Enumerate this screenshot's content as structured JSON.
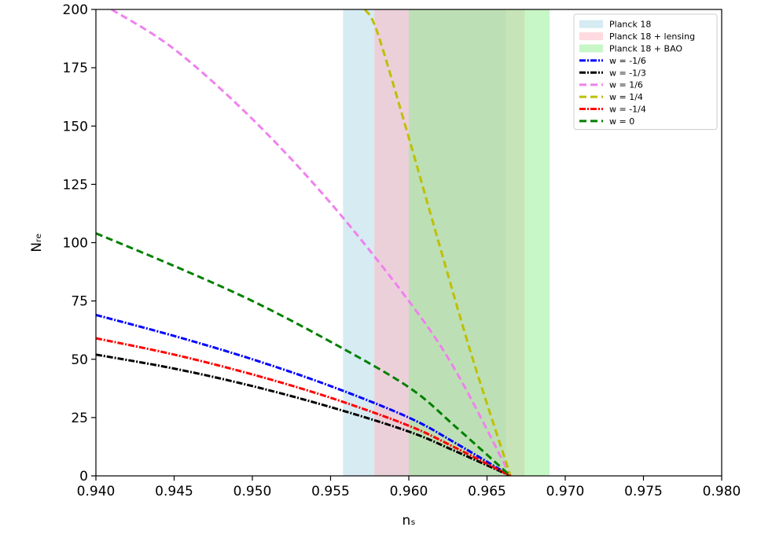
{
  "chart_data": {
    "type": "line",
    "title": "",
    "xlabel": "nₛ",
    "ylabel": "Nᵣₑ",
    "xlim": [
      0.94,
      0.98
    ],
    "ylim": [
      0,
      200
    ],
    "x_ticks": [
      "0.940",
      "0.945",
      "0.950",
      "0.955",
      "0.960",
      "0.965",
      "0.970",
      "0.975",
      "0.980"
    ],
    "y_ticks": [
      "0",
      "25",
      "50",
      "75",
      "100",
      "125",
      "150",
      "175",
      "200"
    ],
    "grid": false,
    "legend_position": "top-right",
    "bands": [
      {
        "name": "Planck 18",
        "x_range": [
          0.9558,
          0.9662
        ],
        "color": "#add8e6"
      },
      {
        "name": "Planck 18 + lensing",
        "x_range": [
          0.9578,
          0.9674
        ],
        "color": "#ffb6c1"
      },
      {
        "name": "Planck 18 + BAO",
        "x_range": [
          0.96,
          0.969
        ],
        "color": "#90ee90"
      }
    ],
    "series": [
      {
        "name": "w = -1/6",
        "color": "#0000ff",
        "dash": "dashdot",
        "x": [
          0.94,
          0.945,
          0.95,
          0.955,
          0.96,
          0.963,
          0.9665
        ],
        "y": [
          69,
          60,
          50,
          38.5,
          25,
          14,
          0
        ]
      },
      {
        "name": "w = -1/3",
        "color": "#000000",
        "dash": "dashdot",
        "x": [
          0.94,
          0.945,
          0.95,
          0.955,
          0.96,
          0.963,
          0.9665
        ],
        "y": [
          52,
          46,
          38.5,
          29.5,
          19,
          10.5,
          0
        ]
      },
      {
        "name": "w = 1/6",
        "color": "#ee82ee",
        "dash": "dashed",
        "x": [
          0.941,
          0.945,
          0.95,
          0.955,
          0.96,
          0.963,
          0.9665
        ],
        "y": [
          200,
          183,
          153,
          117,
          75,
          45,
          0
        ]
      },
      {
        "name": "w = 1/4",
        "color": "#bfbf00",
        "dash": "dashed",
        "x": [
          0.9572,
          0.958,
          0.96,
          0.962,
          0.964,
          0.9665
        ],
        "y": [
          200,
          190,
          145,
          98,
          52,
          0
        ]
      },
      {
        "name": "w = -1/4",
        "color": "#ff0000",
        "dash": "dashdot",
        "x": [
          0.94,
          0.945,
          0.95,
          0.955,
          0.96,
          0.963,
          0.9665
        ],
        "y": [
          59,
          52,
          43.5,
          33.5,
          21.5,
          12,
          0
        ]
      },
      {
        "name": "w = 0",
        "color": "#008000",
        "dash": "dashed",
        "x": [
          0.94,
          0.945,
          0.95,
          0.955,
          0.96,
          0.963,
          0.9665
        ],
        "y": [
          104,
          90,
          75,
          57.5,
          38,
          21,
          0
        ]
      }
    ]
  }
}
